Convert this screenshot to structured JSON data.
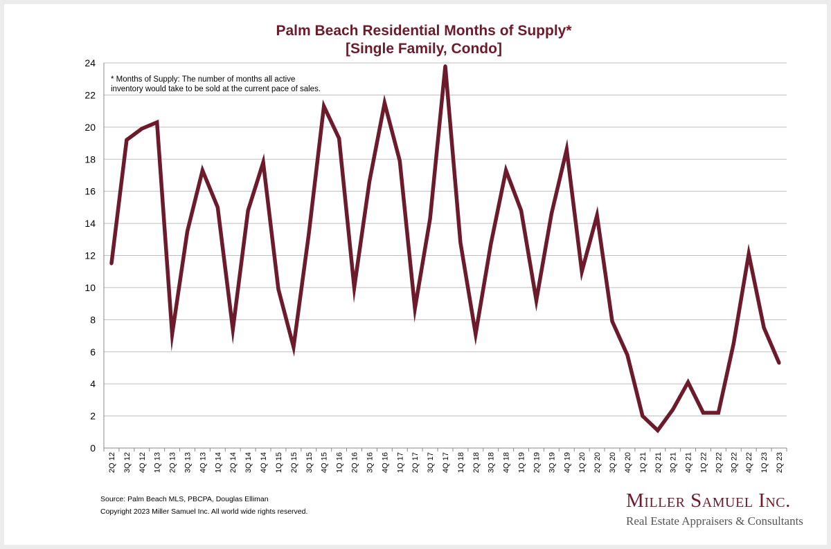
{
  "title_line1": "Palm Beach Residential Months of Supply*",
  "title_line2": "[Single Family, Condo]",
  "footnote_line1": "* Months of Supply: The number of months all active",
  "footnote_line2": "inventory would take to be sold at the current pace of sales.",
  "source": "Source: Palm Beach MLS, PBCPA, Douglas Elliman",
  "copyright": "Copyright 2023 Miller Samuel Inc.  All world wide rights reserved.",
  "logo_name": "Miller Samuel Inc.",
  "logo_tagline": "Real Estate Appraisers & Consultants",
  "colors": {
    "line": "#6b1b2b",
    "title": "#6b1b2b",
    "grid": "#bdbdbd"
  },
  "chart_data": {
    "type": "line",
    "title": "Palm Beach Residential Months of Supply* [Single Family, Condo]",
    "xlabel": "",
    "ylabel": "",
    "ylim": [
      0,
      24
    ],
    "yticks": [
      0,
      2,
      4,
      6,
      8,
      10,
      12,
      14,
      16,
      18,
      20,
      22,
      24
    ],
    "grid": true,
    "categories": [
      "2Q 12",
      "3Q 12",
      "4Q 12",
      "1Q 13",
      "2Q 13",
      "3Q 13",
      "4Q 13",
      "1Q 14",
      "2Q 14",
      "3Q 14",
      "4Q 14",
      "1Q 15",
      "2Q 15",
      "3Q 15",
      "4Q 15",
      "1Q 16",
      "2Q 16",
      "3Q 16",
      "4Q 16",
      "1Q 17",
      "2Q 17",
      "3Q 17",
      "4Q 17",
      "1Q 18",
      "2Q 18",
      "3Q 18",
      "4Q 18",
      "1Q 19",
      "2Q 19",
      "3Q 19",
      "4Q 19",
      "1Q 20",
      "2Q 20",
      "3Q 20",
      "4Q 20",
      "1Q 21",
      "2Q 21",
      "3Q 21",
      "4Q 21",
      "1Q 22",
      "2Q 22",
      "3Q 22",
      "4Q 22",
      "1Q 23",
      "2Q 23"
    ],
    "series": [
      {
        "values": [
          11.5,
          19.2,
          19.9,
          20.3,
          7.1,
          13.5,
          17.3,
          15.0,
          7.4,
          14.8,
          17.8,
          9.9,
          6.3,
          13.3,
          21.3,
          19.3,
          10.0,
          16.6,
          21.5,
          17.9,
          8.7,
          14.3,
          23.8,
          12.8,
          7.1,
          12.7,
          17.3,
          14.8,
          9.2,
          14.6,
          18.6,
          11.0,
          14.5,
          7.9,
          5.8,
          2.0,
          1.1,
          2.4,
          4.1,
          2.2,
          2.2,
          6.5,
          12.1,
          7.5,
          5.3
        ]
      }
    ]
  }
}
